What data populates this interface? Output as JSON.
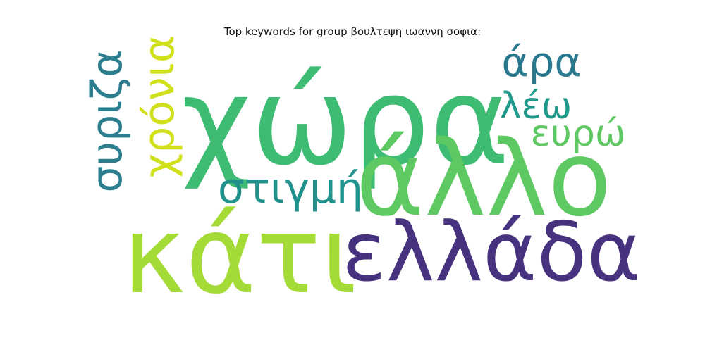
{
  "title": "Top keywords for group βουλτεψη ιωαννη σοφια:",
  "words": [
    {
      "text": "χώρα",
      "color": "#3fbc73"
    },
    {
      "text": "κάτι",
      "color": "#a5db36"
    },
    {
      "text": "άλλο",
      "color": "#5ec962"
    },
    {
      "text": "ελλάδα",
      "color": "#46327e"
    },
    {
      "text": "στιγμή",
      "color": "#21918c"
    },
    {
      "text": "χρόνια",
      "color": "#d0e11c"
    },
    {
      "text": "συριζα",
      "color": "#2c7e8e"
    },
    {
      "text": "άρα",
      "color": "#2a788e"
    },
    {
      "text": "λέω",
      "color": "#1f9a8a"
    },
    {
      "text": "ευρώ",
      "color": "#5ec962"
    }
  ]
}
